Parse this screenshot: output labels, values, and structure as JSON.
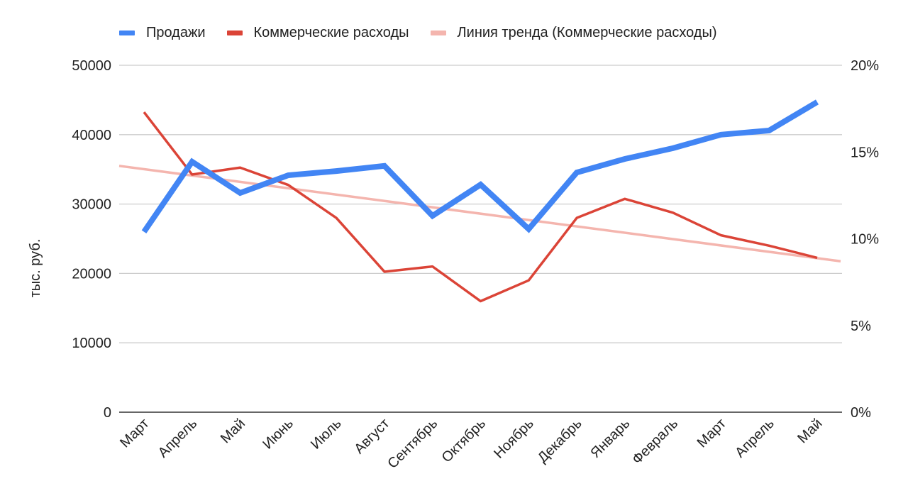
{
  "legend": [
    {
      "label": "Продажи",
      "color": "#4285f4"
    },
    {
      "label": "Коммерческие расходы",
      "color": "#db4437"
    },
    {
      "label": "Линия тренда (Коммерческие расходы)",
      "color": "#f4b5ae"
    }
  ],
  "axes": {
    "left_label": "тыс. руб.",
    "left_ticks": [
      "0",
      "10000",
      "20000",
      "30000",
      "40000",
      "50000"
    ],
    "right_ticks": [
      "0%",
      "5%",
      "10%",
      "15%",
      "20%"
    ]
  },
  "chart_data": {
    "type": "line",
    "title": "",
    "categories": [
      "Март",
      "Апрель",
      "Май",
      "Июнь",
      "Июль",
      "Август",
      "Сентябрь",
      "Октябрь",
      "Ноябрь",
      "Декабрь",
      "Январь",
      "Февраль",
      "Март",
      "Апрель",
      "Май"
    ],
    "xlabel": "",
    "ylabel": "тыс. руб.",
    "ylim": [
      0,
      50000
    ],
    "y2lim": [
      0,
      20
    ],
    "y2_unit": "%",
    "grid": true,
    "legend_position": "top",
    "series": [
      {
        "name": "Продажи",
        "axis": "left",
        "color": "#4285f4",
        "values": [
          26000,
          36100,
          31600,
          34150,
          34750,
          35500,
          28300,
          32800,
          26400,
          34550,
          36500,
          38050,
          40000,
          40600,
          44700
        ]
      },
      {
        "name": "Коммерческие расходы",
        "axis": "right",
        "color": "#db4437",
        "values": [
          17.3,
          13.7,
          14.1,
          13.1,
          11.2,
          8.1,
          8.4,
          6.4,
          7.6,
          11.2,
          12.3,
          11.5,
          10.2,
          9.6,
          8.9
        ]
      },
      {
        "name": "Линия тренда (Коммерческие расходы)",
        "axis": "right",
        "color": "#f4b5ae",
        "kind": "linear-trend",
        "start": 14.2,
        "end": 8.7
      }
    ]
  }
}
